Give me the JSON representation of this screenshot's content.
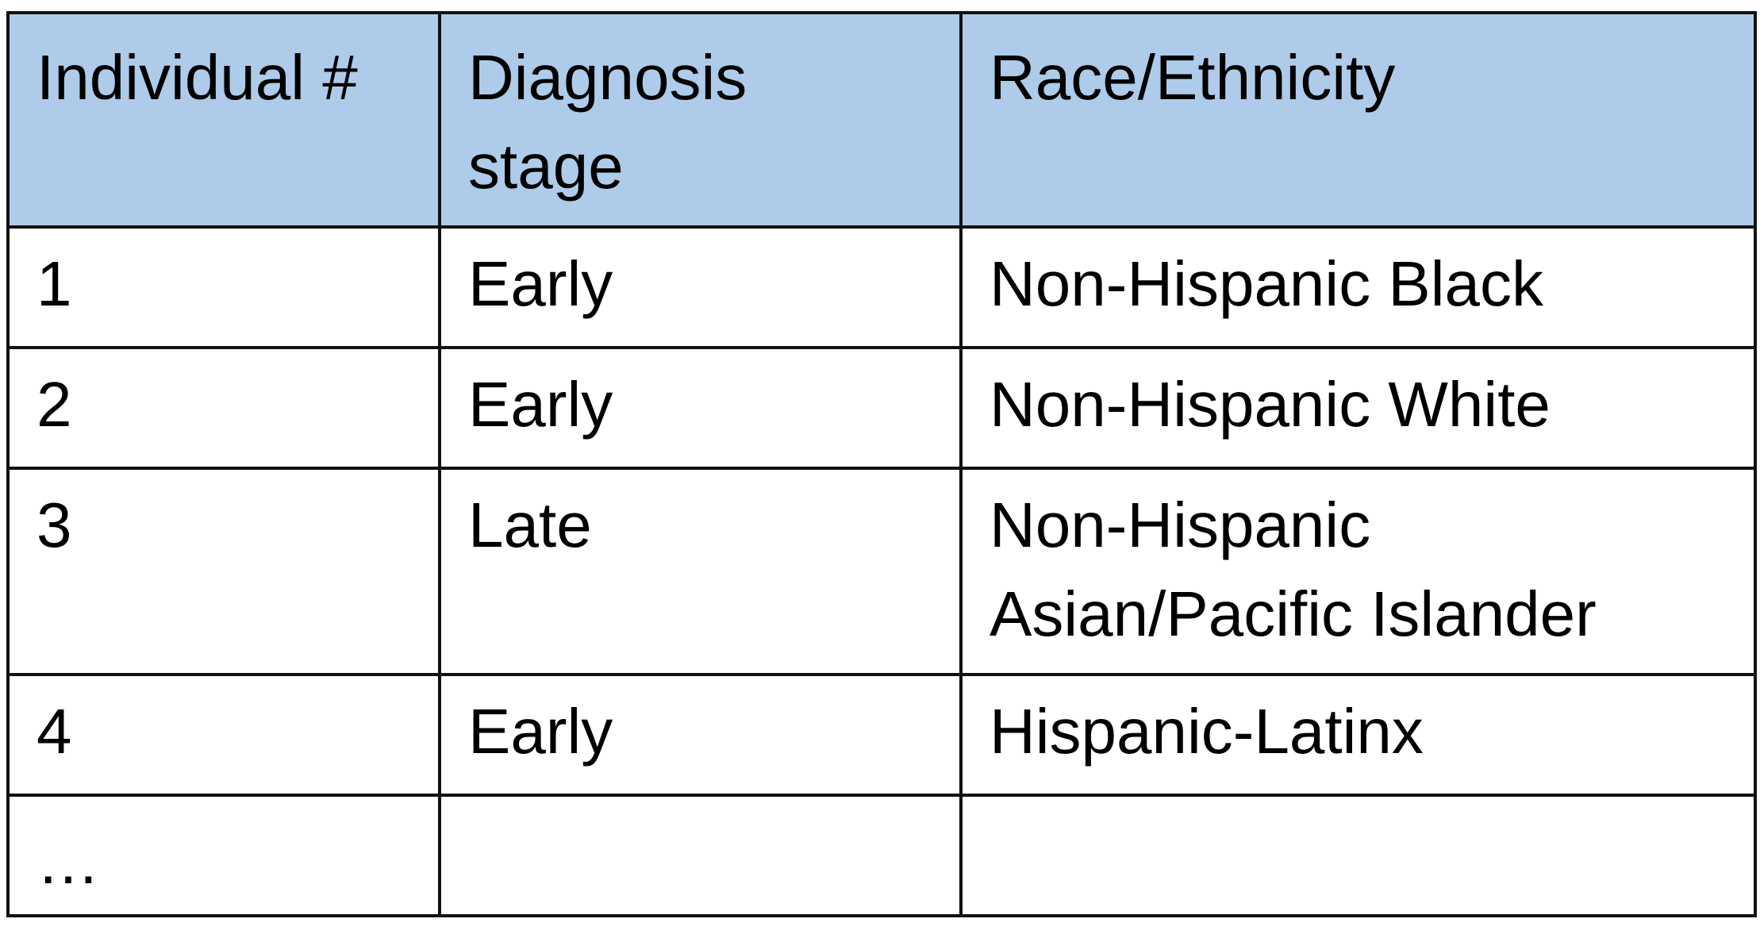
{
  "table": {
    "headers": [
      "Individual #",
      "Diagnosis stage",
      "Race/Ethnicity"
    ],
    "rows": [
      [
        "1",
        "Early",
        "Non-Hispanic Black"
      ],
      [
        "2",
        "Early",
        "Non-Hispanic White"
      ],
      [
        "3",
        "Late",
        "Non-Hispanic Asian/Pacific Islander"
      ],
      [
        "4",
        "Early",
        "Hispanic-Latinx"
      ],
      [
        "…",
        "",
        ""
      ]
    ]
  },
  "colors": {
    "header_background": "#aecce9",
    "border": "#111111",
    "text": "#000000",
    "cell_background": "#ffffff"
  }
}
